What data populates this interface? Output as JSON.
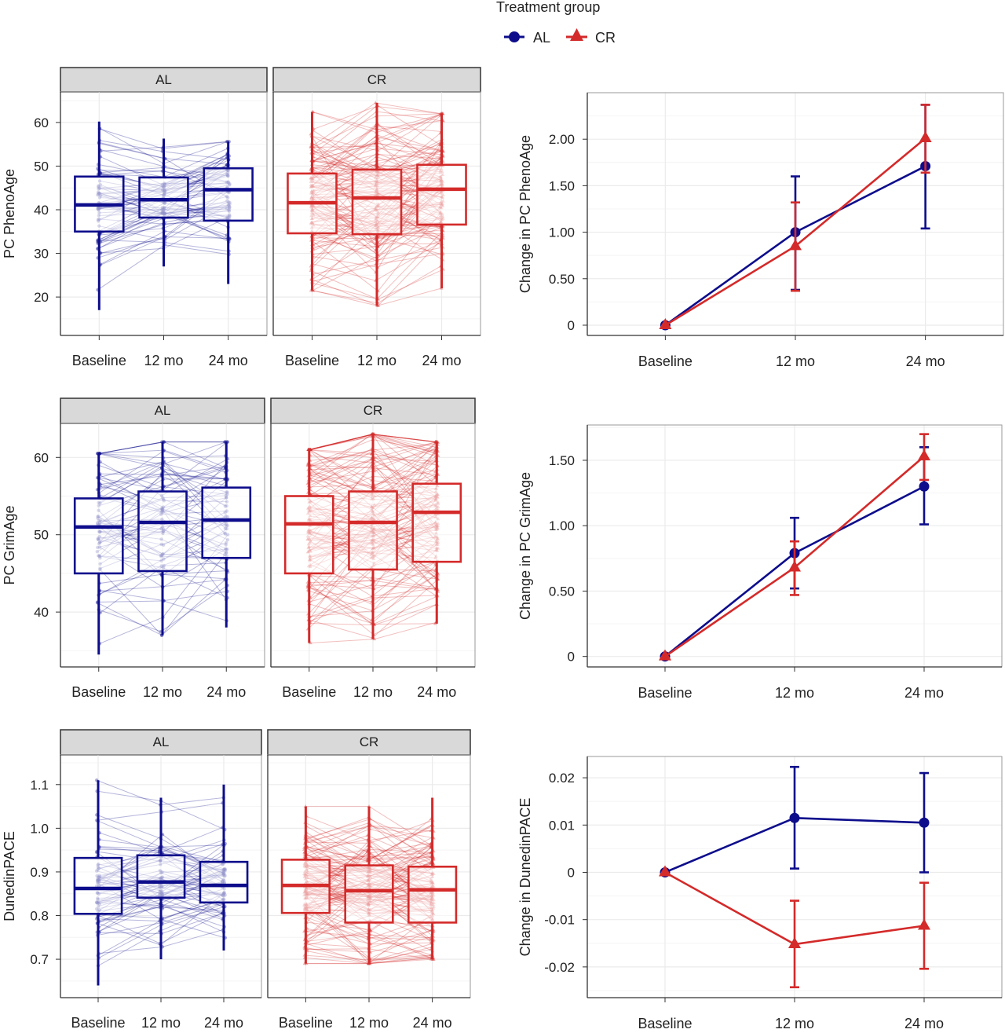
{
  "legend": {
    "title": "Treatment group",
    "entries": [
      {
        "label": "AL",
        "color": "#0d0d8c",
        "shape": "circle"
      },
      {
        "label": "CR",
        "color": "#d42a2a",
        "shape": "triangle"
      }
    ]
  },
  "colors": {
    "AL": "#0d0d8c",
    "CR": "#d42a2a",
    "strip_fill": "#d9d9d9",
    "grid": "#ebebeb"
  },
  "chart_data": [
    {
      "type": "box",
      "ylabel": "PC PhenoAge",
      "categories": [
        "Baseline",
        "12 mo",
        "24 mo"
      ],
      "yticks": [
        {
          "v": 20,
          "label": "20"
        },
        {
          "v": 30,
          "label": "30"
        },
        {
          "v": 40,
          "label": "40"
        },
        {
          "v": 50,
          "label": "50"
        },
        {
          "v": 60,
          "label": "60"
        }
      ],
      "ylim": [
        11.2,
        67.0
      ],
      "grid": true,
      "facets": [
        {
          "name": "AL",
          "boxes": [
            {
              "min": 17.0,
              "q1": 35.0,
              "median": 41.1,
              "q3": 47.6,
              "max": 60.2
            },
            {
              "min": 27.0,
              "q1": 38.2,
              "median": 42.3,
              "q3": 47.4,
              "max": 56.3
            },
            {
              "min": 23.0,
              "q1": 37.5,
              "median": 44.6,
              "q3": 49.5,
              "max": 55.6
            }
          ]
        },
        {
          "name": "CR",
          "boxes": [
            {
              "min": 21.5,
              "q1": 34.6,
              "median": 41.6,
              "q3": 48.3,
              "max": 62.4
            },
            {
              "min": 18.0,
              "q1": 34.4,
              "median": 42.7,
              "q3": 49.2,
              "max": 64.5
            },
            {
              "min": 22.0,
              "q1": 36.6,
              "median": 44.7,
              "q3": 50.3,
              "max": 62.0
            }
          ]
        }
      ]
    },
    {
      "type": "line",
      "ylabel": "Change in PC PhenoAge",
      "categories": [
        "Baseline",
        "12 mo",
        "24 mo"
      ],
      "yticks": [
        {
          "v": 0,
          "label": "0"
        },
        {
          "v": 0.5,
          "label": "0.50"
        },
        {
          "v": 1.0,
          "label": "1.00"
        },
        {
          "v": 1.5,
          "label": "1.50"
        },
        {
          "v": 2.0,
          "label": "2.00"
        }
      ],
      "ylim": [
        -0.11,
        2.5
      ],
      "grid": true,
      "series": [
        {
          "name": "AL",
          "values": [
            0,
            1.0,
            1.71
          ],
          "lower": [
            0,
            0.38,
            1.04
          ],
          "upper": [
            0,
            1.6,
            2.37
          ]
        },
        {
          "name": "CR",
          "values": [
            0,
            0.85,
            2.01
          ],
          "lower": [
            0,
            0.37,
            1.64
          ],
          "upper": [
            0,
            1.32,
            2.37
          ]
        }
      ]
    },
    {
      "type": "box",
      "ylabel": "PC GrimAge",
      "categories": [
        "Baseline",
        "12 mo",
        "24 mo"
      ],
      "yticks": [
        {
          "v": 40,
          "label": "40"
        },
        {
          "v": 50,
          "label": "50"
        },
        {
          "v": 60,
          "label": "60"
        }
      ],
      "ylim": [
        32.9,
        64.4
      ],
      "grid": true,
      "facets": [
        {
          "name": "AL",
          "boxes": [
            {
              "min": 34.5,
              "q1": 45.0,
              "median": 51.0,
              "q3": 54.7,
              "max": 60.5
            },
            {
              "min": 37.0,
              "q1": 45.3,
              "median": 51.6,
              "q3": 55.6,
              "max": 62.0
            },
            {
              "min": 38.0,
              "q1": 47.0,
              "median": 51.9,
              "q3": 56.1,
              "max": 62.0
            }
          ]
        },
        {
          "name": "CR",
          "boxes": [
            {
              "min": 36.0,
              "q1": 45.0,
              "median": 51.4,
              "q3": 55.0,
              "max": 61.0
            },
            {
              "min": 36.5,
              "q1": 45.5,
              "median": 51.6,
              "q3": 55.6,
              "max": 63.0
            },
            {
              "min": 38.5,
              "q1": 46.5,
              "median": 52.9,
              "q3": 56.6,
              "max": 62.0
            }
          ]
        }
      ]
    },
    {
      "type": "line",
      "ylabel": "Change in PC GrimAge",
      "categories": [
        "Baseline",
        "12 mo",
        "24 mo"
      ],
      "yticks": [
        {
          "v": 0,
          "label": "0"
        },
        {
          "v": 0.5,
          "label": "0.50"
        },
        {
          "v": 1.0,
          "label": "1.00"
        },
        {
          "v": 1.5,
          "label": "1.50"
        }
      ],
      "ylim": [
        -0.08,
        1.77
      ],
      "grid": true,
      "series": [
        {
          "name": "AL",
          "values": [
            0,
            0.79,
            1.3
          ],
          "lower": [
            0,
            0.52,
            1.01
          ],
          "upper": [
            0,
            1.06,
            1.6
          ]
        },
        {
          "name": "CR",
          "values": [
            0,
            0.68,
            1.53
          ],
          "lower": [
            0,
            0.47,
            1.35
          ],
          "upper": [
            0,
            0.88,
            1.7
          ]
        }
      ]
    },
    {
      "type": "box",
      "ylabel": "DunedinPACE",
      "categories": [
        "Baseline",
        "12 mo",
        "24 mo"
      ],
      "yticks": [
        {
          "v": 0.7,
          "label": "0.7"
        },
        {
          "v": 0.8,
          "label": "0.8"
        },
        {
          "v": 0.9,
          "label": "0.9"
        },
        {
          "v": 1.0,
          "label": "1.0"
        },
        {
          "v": 1.1,
          "label": "1.1"
        }
      ],
      "ylim": [
        0.612,
        1.168
      ],
      "grid": true,
      "facets": [
        {
          "name": "AL",
          "boxes": [
            {
              "min": 0.64,
              "q1": 0.804,
              "median": 0.862,
              "q3": 0.932,
              "max": 1.11
            },
            {
              "min": 0.7,
              "q1": 0.841,
              "median": 0.877,
              "q3": 0.938,
              "max": 1.07
            },
            {
              "min": 0.72,
              "q1": 0.83,
              "median": 0.869,
              "q3": 0.923,
              "max": 1.1
            }
          ]
        },
        {
          "name": "CR",
          "boxes": [
            {
              "min": 0.69,
              "q1": 0.806,
              "median": 0.869,
              "q3": 0.928,
              "max": 1.05
            },
            {
              "min": 0.69,
              "q1": 0.784,
              "median": 0.857,
              "q3": 0.915,
              "max": 1.05
            },
            {
              "min": 0.7,
              "q1": 0.784,
              "median": 0.859,
              "q3": 0.912,
              "max": 1.07
            }
          ]
        }
      ]
    },
    {
      "type": "line",
      "ylabel": "Change in DunedinPACE",
      "categories": [
        "Baseline",
        "12 mo",
        "24 mo"
      ],
      "yticks": [
        {
          "v": -0.02,
          "label": "-0.02"
        },
        {
          "v": -0.01,
          "label": "-0.01"
        },
        {
          "v": 0,
          "label": "0"
        },
        {
          "v": 0.01,
          "label": "0.01"
        },
        {
          "v": 0.02,
          "label": "0.02"
        }
      ],
      "ylim": [
        -0.0265,
        0.0245
      ],
      "grid": true,
      "series": [
        {
          "name": "AL",
          "values": [
            0,
            0.0115,
            0.0105
          ],
          "lower": [
            0,
            0.0008,
            0.0
          ],
          "upper": [
            0,
            0.0223,
            0.021
          ]
        },
        {
          "name": "CR",
          "values": [
            0,
            -0.0152,
            -0.0113
          ],
          "lower": [
            0,
            -0.0243,
            -0.0204
          ],
          "upper": [
            0,
            -0.006,
            -0.0022
          ]
        }
      ]
    }
  ]
}
